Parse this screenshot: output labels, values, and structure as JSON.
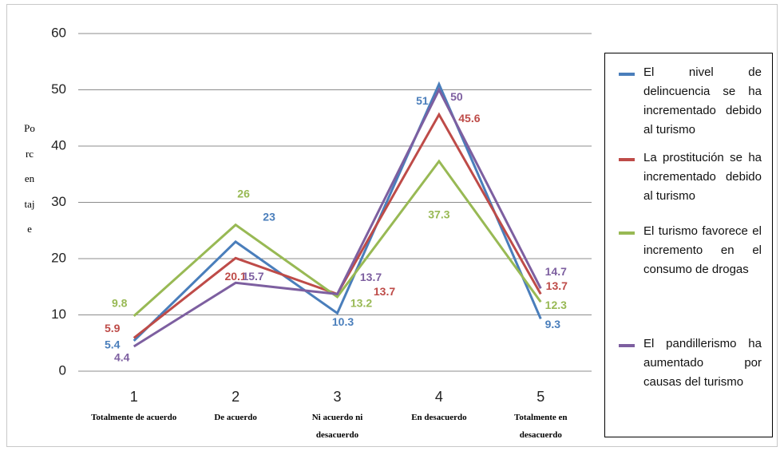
{
  "chart_data": {
    "type": "line",
    "y_label": "Porcentaje",
    "categories": [
      "1",
      "2",
      "3",
      "4",
      "5"
    ],
    "category_descriptions": [
      "Totalmente de acuerdo",
      "De acuerdo",
      "Ni acuerdo ni desacuerdo",
      "En desacuerdo",
      "Totalmente en desacuerdo"
    ],
    "series": [
      {
        "name": "El nivel de delincuencia se ha incrementado debido al turismo",
        "color": "#4a7ebb",
        "values": [
          5.4,
          23,
          10.3,
          51,
          9.3
        ]
      },
      {
        "name": "La prostitución se ha incrementado debido al turismo",
        "color": "#be4b48",
        "values": [
          5.9,
          20.1,
          13.7,
          45.6,
          13.7
        ]
      },
      {
        "name": "El turismo favorece el incremento en el consumo de drogas",
        "color": "#98b954",
        "values": [
          9.8,
          26,
          13.2,
          37.3,
          12.3
        ]
      },
      {
        "name": "El pandillerismo ha aumentado por causas del turismo",
        "color": "#7d5fa0",
        "values": [
          4.4,
          15.7,
          13.7,
          50,
          14.7
        ]
      }
    ],
    "ylim": [
      0,
      60
    ],
    "yticks": [
      0,
      10,
      20,
      30,
      40,
      50,
      60
    ],
    "grid": true,
    "legend": "right"
  }
}
